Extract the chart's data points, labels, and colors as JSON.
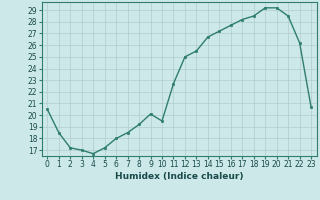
{
  "x": [
    0,
    1,
    2,
    3,
    4,
    5,
    6,
    7,
    8,
    9,
    10,
    11,
    12,
    13,
    14,
    15,
    16,
    17,
    18,
    19,
    20,
    21,
    22,
    23
  ],
  "y": [
    20.5,
    18.5,
    17.2,
    17.0,
    16.7,
    17.2,
    18.0,
    18.5,
    19.2,
    20.1,
    19.5,
    22.7,
    25.0,
    25.5,
    26.7,
    27.2,
    27.7,
    28.2,
    28.5,
    29.2,
    29.2,
    28.5,
    26.2,
    20.7
  ],
  "line_color": "#2e7d6e",
  "marker": "s",
  "marker_size": 2.0,
  "bg_color": "#cce8e8",
  "grid_color": "#b0cccc",
  "xlabel": "Humidex (Indice chaleur)",
  "xlim": [
    -0.5,
    23.5
  ],
  "ylim": [
    16.5,
    29.7
  ],
  "yticks": [
    17,
    18,
    19,
    20,
    21,
    22,
    23,
    24,
    25,
    26,
    27,
    28,
    29
  ],
  "xticks": [
    0,
    1,
    2,
    3,
    4,
    5,
    6,
    7,
    8,
    9,
    10,
    11,
    12,
    13,
    14,
    15,
    16,
    17,
    18,
    19,
    20,
    21,
    22,
    23
  ],
  "tick_label_fontsize": 5.5,
  "xlabel_fontsize": 6.5,
  "line_width": 1.0
}
